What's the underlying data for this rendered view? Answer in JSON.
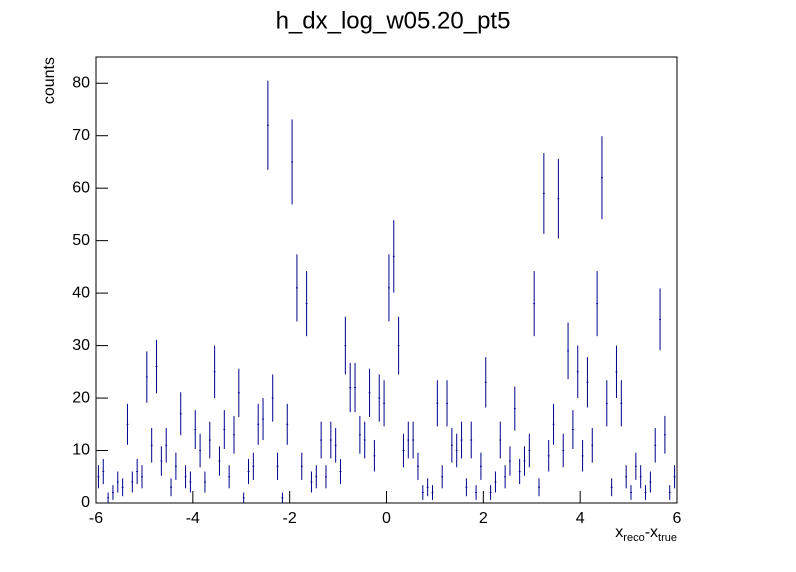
{
  "chart_data": {
    "type": "histogram",
    "title": "h_dx_log_w05.20_pt5",
    "ylabel": "counts",
    "xlabel_parts": [
      "x",
      "reco",
      "-x",
      "true"
    ],
    "color": "#00008b",
    "bins": [
      -6,
      -5.9,
      -5.8,
      -5.7,
      -5.6,
      -5.5,
      -5.4,
      -5.3,
      -5.2,
      -5.1,
      -5,
      -4.9,
      -4.8,
      -4.7,
      -4.6,
      -4.5,
      -4.4,
      -4.3,
      -4.2,
      -4.1,
      -4,
      -3.9,
      -3.8,
      -3.7,
      -3.6,
      -3.5,
      -3.4,
      -3.3,
      -3.2,
      -3.1,
      -3,
      -2.9,
      -2.8,
      -2.7,
      -2.6,
      -2.5,
      -2.4,
      -2.3,
      -2.2,
      -2.1,
      -2,
      -1.9,
      -1.8,
      -1.7,
      -1.6,
      -1.5,
      -1.4,
      -1.3,
      -1.2,
      -1.1,
      -1,
      -0.9,
      -0.8,
      -0.7,
      -0.6,
      -0.5,
      -0.4,
      -0.3,
      -0.2,
      -0.1,
      0,
      0.1,
      0.2,
      0.3,
      0.4,
      0.5,
      0.6,
      0.7,
      0.8,
      0.9,
      1,
      1.1,
      1.2,
      1.3,
      1.4,
      1.5,
      1.6,
      1.7,
      1.8,
      1.9,
      2,
      2.1,
      2.2,
      2.3,
      2.4,
      2.5,
      2.6,
      2.7,
      2.8,
      2.9,
      3,
      3.1,
      3.2,
      3.3,
      3.4,
      3.5,
      3.6,
      3.7,
      3.8,
      3.9,
      4,
      4.1,
      4.2,
      4.3,
      4.4,
      4.5,
      4.6,
      4.7,
      4.8,
      4.9,
      5,
      5.1,
      5.2,
      5.3,
      5.4,
      5.5,
      5.6,
      5.7,
      5.8,
      5.9,
      6
    ],
    "values": [
      5,
      6,
      1,
      2,
      4,
      3,
      15,
      4,
      6,
      5,
      24,
      11,
      26,
      8,
      11,
      3,
      7,
      17,
      5,
      4,
      14,
      10,
      4,
      12,
      25,
      8,
      14,
      5,
      13,
      21,
      1,
      6,
      7,
      15,
      16,
      72,
      20,
      7,
      1,
      15,
      65,
      41,
      7,
      38,
      4,
      5,
      12,
      5,
      12,
      11,
      6,
      30,
      22,
      22,
      13,
      12,
      21,
      9,
      20,
      19,
      41,
      47,
      30,
      10,
      12,
      12,
      7,
      2,
      3,
      2,
      19,
      5,
      19,
      11,
      10,
      12,
      3,
      12,
      2,
      7,
      23,
      2,
      4,
      12,
      5,
      8,
      18,
      6,
      8,
      10,
      38,
      3,
      59,
      9,
      15,
      58,
      10,
      29,
      14,
      25,
      9,
      23,
      11,
      38,
      62,
      19,
      3,
      25,
      19,
      5,
      2,
      7,
      5,
      2,
      4,
      11,
      35,
      13,
      2,
      5
    ],
    "errors": [
      2.2,
      2.4,
      1,
      1.4,
      2,
      1.7,
      3.9,
      2,
      2.4,
      2.2,
      4.9,
      3.3,
      5.1,
      2.8,
      3.3,
      1.7,
      2.6,
      4.1,
      2.2,
      2,
      3.7,
      3.2,
      2,
      3.5,
      5,
      2.8,
      3.7,
      2.2,
      3.6,
      4.6,
      1,
      2.4,
      2.6,
      3.9,
      4,
      8.5,
      4.5,
      2.6,
      1,
      3.9,
      8.1,
      6.4,
      2.6,
      6.2,
      2,
      2.2,
      3.5,
      2.2,
      3.5,
      3.3,
      2.4,
      5.5,
      4.7,
      4.7,
      3.6,
      3.5,
      4.6,
      3,
      4.5,
      4.4,
      6.4,
      6.9,
      5.5,
      3.2,
      3.5,
      3.5,
      2.6,
      1.4,
      1.7,
      1.4,
      4.4,
      2.2,
      4.4,
      3.3,
      3.2,
      3.5,
      1.7,
      3.5,
      1.4,
      2.6,
      4.8,
      1.4,
      2,
      3.5,
      2.2,
      2.8,
      4.2,
      2.4,
      2.8,
      3.2,
      6.2,
      1.7,
      7.7,
      3,
      3.9,
      7.6,
      3.2,
      5.4,
      3.7,
      5,
      3,
      4.8,
      3.3,
      6.2,
      7.9,
      4.4,
      1.7,
      5,
      4.4,
      2.2,
      1.4,
      2.6,
      2.2,
      1.4,
      2,
      3.3,
      5.9,
      3.6,
      1.4,
      2.2
    ],
    "xlim": [
      -6,
      6
    ],
    "xticks": [
      -6,
      -4,
      -2,
      0,
      2,
      4,
      6
    ],
    "ylim": [
      0,
      85
    ],
    "yticks": [
      0,
      10,
      20,
      30,
      40,
      50,
      60,
      70,
      80
    ]
  }
}
